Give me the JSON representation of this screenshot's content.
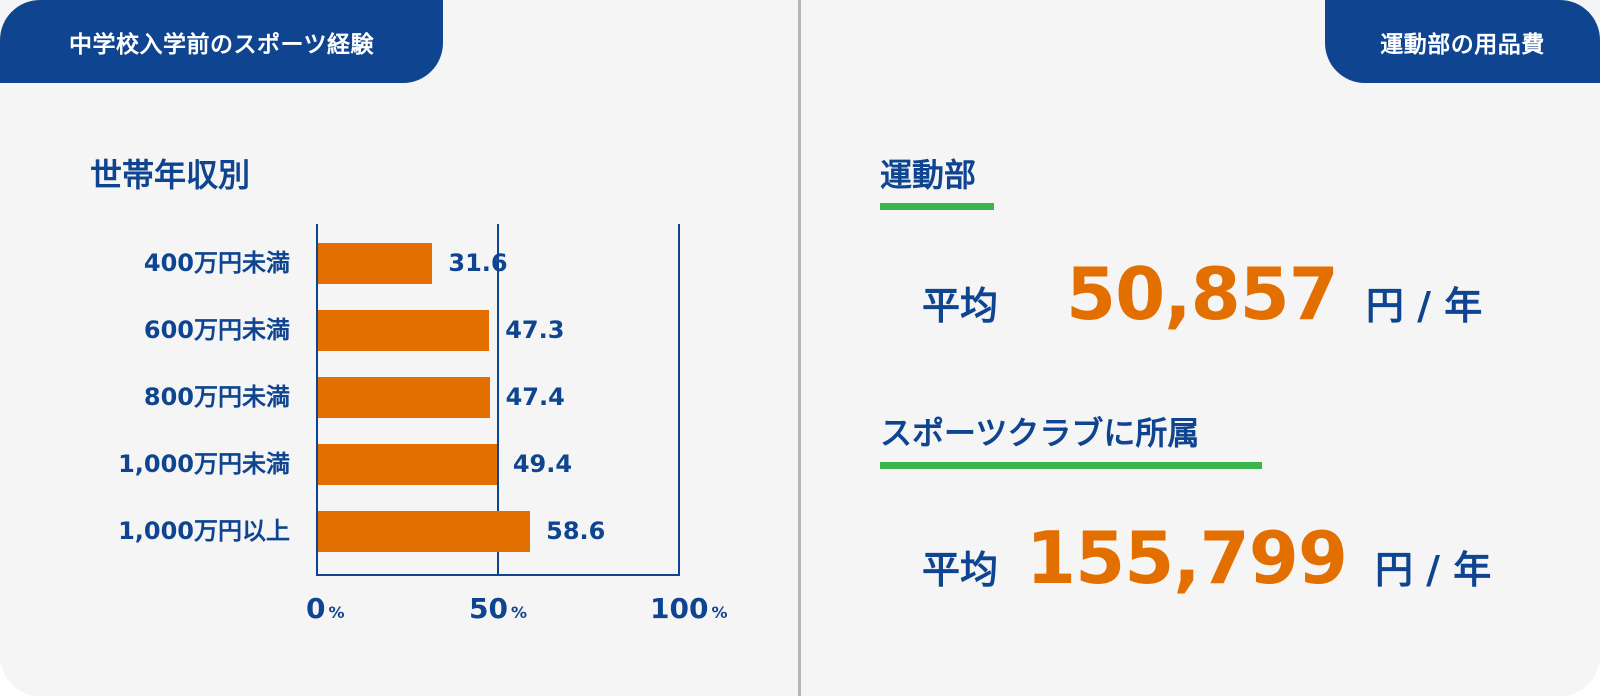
{
  "colors": {
    "brand_blue": "#0f4590",
    "bar_orange": "#e36f00",
    "accent_green": "#3bb54a",
    "panel_bg": "#f5f5f5",
    "divider": "#b5b5b5"
  },
  "left_panel": {
    "tab_label": "中学校入学前のスポーツ経験",
    "chart_title": "世帯年収別"
  },
  "right_panel": {
    "tab_label": "運動部の用品費",
    "sections": [
      {
        "title": "運動部",
        "prefix": "平均",
        "value": "50,857",
        "unit": "円 / 年"
      },
      {
        "title": "スポーツクラブに所属",
        "prefix": "平均",
        "value": "155,799",
        "unit": "円 / 年"
      }
    ]
  },
  "chart_data": {
    "type": "bar",
    "orientation": "horizontal",
    "title": "世帯年収別",
    "categories": [
      "400万円未満",
      "600万円未満",
      "800万円未満",
      "1,000万円未満",
      "1,000万円以上"
    ],
    "values": [
      31.6,
      47.3,
      47.4,
      49.4,
      58.6
    ],
    "value_labels": [
      "31.6",
      "47.3",
      "47.4",
      "49.4",
      "58.6"
    ],
    "xlabel": "",
    "ylabel": "",
    "xlim": [
      0,
      100
    ],
    "x_ticks": [
      {
        "value": "0",
        "unit": "%"
      },
      {
        "value": "50",
        "unit": "%"
      },
      {
        "value": "100",
        "unit": "%"
      }
    ],
    "grid": "vertical lines at 0, 50, 100",
    "legend": "none",
    "bar_color": "#e36f00"
  }
}
